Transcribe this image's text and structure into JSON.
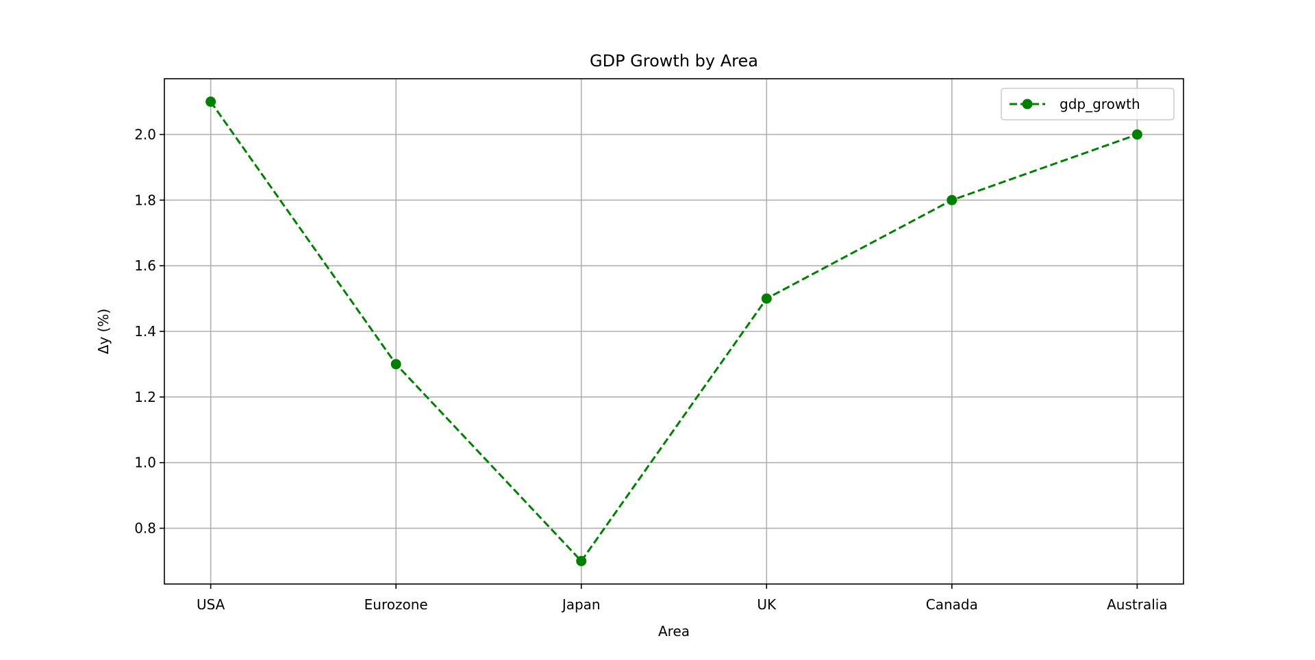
{
  "chart_data": {
    "type": "line",
    "title": "GDP Growth by Area",
    "xlabel": "Area",
    "ylabel": "Δy (%)",
    "categories": [
      "USA",
      "Eurozone",
      "Japan",
      "UK",
      "Canada",
      "Australia"
    ],
    "series": [
      {
        "name": "gdp_growth",
        "values": [
          2.1,
          1.3,
          0.7,
          1.5,
          1.8,
          2.0
        ],
        "color": "#008000",
        "linestyle": "dashed",
        "marker": "circle"
      }
    ],
    "yticks": [
      "0.8",
      "1.0",
      "1.2",
      "1.4",
      "1.6",
      "1.8",
      "2.0"
    ],
    "ylim": [
      0.63,
      2.17
    ],
    "xlim": [
      -0.25,
      5.25
    ],
    "grid": true,
    "legend": {
      "placement": "top-right",
      "entries": [
        "gdp_growth"
      ]
    }
  }
}
